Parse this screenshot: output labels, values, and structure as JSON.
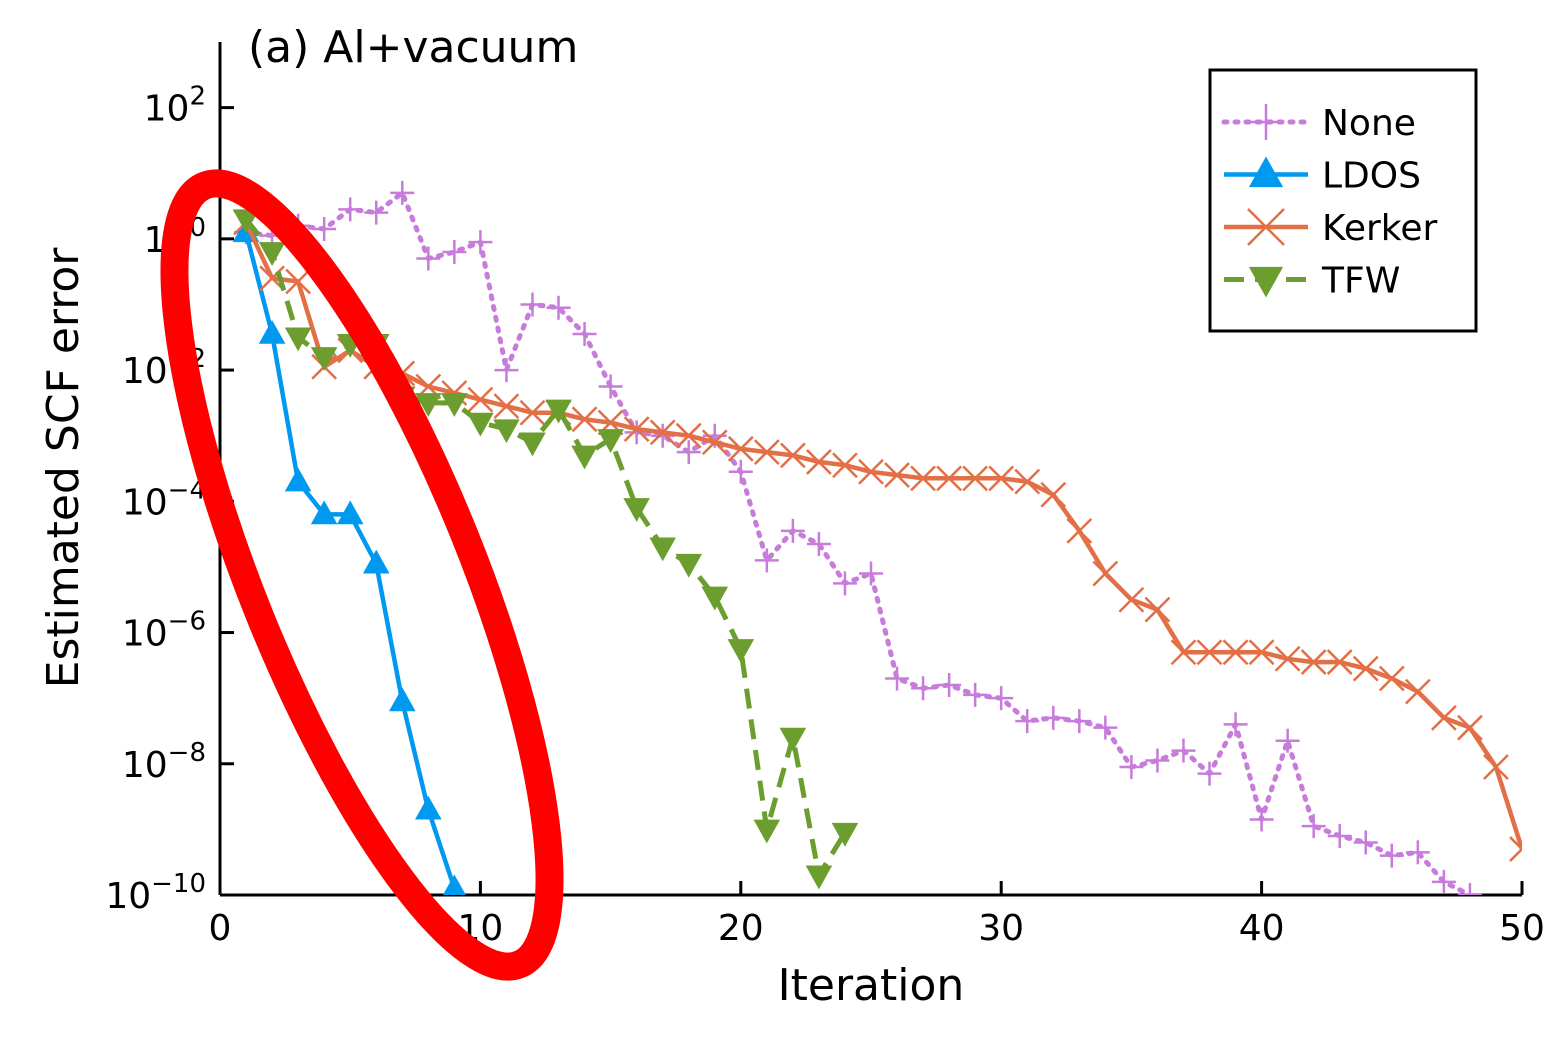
{
  "chart_data": {
    "type": "line",
    "title": "(a) Al+vacuum",
    "xlabel": "Iteration",
    "ylabel": "Estimated SCF error",
    "xlim": [
      0,
      50
    ],
    "ylim_log10": [
      -10,
      3
    ],
    "yscale": "log",
    "xticks": [
      0,
      10,
      20,
      30,
      40,
      50
    ],
    "yticks_exp": [
      2,
      0,
      -2,
      -4,
      -6,
      -8,
      -10
    ],
    "ytick_base": "10",
    "grid": false,
    "legend": "top-right",
    "annotation": "red ellipse highlighting early iterations",
    "series": [
      {
        "name": "None",
        "color": "#c77cdb",
        "marker": "plus",
        "dash": "dot",
        "x": [
          1,
          2,
          3,
          4,
          5,
          6,
          7,
          8,
          9,
          10,
          11,
          12,
          13,
          14,
          15,
          16,
          17,
          18,
          19,
          20,
          21,
          22,
          23,
          24,
          25,
          26,
          27,
          28,
          29,
          30,
          31,
          32,
          33,
          34,
          35,
          36,
          37,
          38,
          39,
          40,
          41,
          42,
          43,
          44,
          45,
          46,
          47,
          48
        ],
        "log10y": [
          0.1,
          0.05,
          0.2,
          0.15,
          0.45,
          0.4,
          0.7,
          -0.3,
          -0.2,
          -0.05,
          -2.0,
          -1.0,
          -1.05,
          -1.45,
          -2.25,
          -2.95,
          -3.0,
          -3.25,
          -3.0,
          -3.55,
          -4.9,
          -4.45,
          -4.65,
          -5.25,
          -5.1,
          -6.7,
          -6.85,
          -6.8,
          -6.95,
          -7.0,
          -7.35,
          -7.3,
          -7.35,
          -7.45,
          -8.05,
          -7.95,
          -7.8,
          -8.15,
          -7.4,
          -8.85,
          -7.65,
          -8.95,
          -9.1,
          -9.2,
          -9.4,
          -9.35,
          -9.8,
          -10.0
        ]
      },
      {
        "name": "LDOS",
        "color": "#0099f0",
        "marker": "triangle-up",
        "dash": "solid",
        "x": [
          1,
          2,
          3,
          4,
          5,
          6,
          7,
          8,
          9
        ],
        "log10y": [
          0.1,
          -1.45,
          -3.7,
          -4.2,
          -4.2,
          -4.95,
          -7.05,
          -8.7,
          -9.9
        ]
      },
      {
        "name": "Kerker",
        "color": "#e26f46",
        "marker": "x",
        "dash": "solid",
        "x": [
          1,
          2,
          3,
          4,
          5,
          6,
          7,
          8,
          9,
          10,
          11,
          12,
          13,
          14,
          15,
          16,
          17,
          18,
          19,
          20,
          21,
          22,
          23,
          24,
          25,
          26,
          27,
          28,
          29,
          30,
          31,
          32,
          33,
          34,
          35,
          36,
          37,
          38,
          39,
          40,
          41,
          42,
          43,
          44,
          45,
          46,
          47,
          48,
          49,
          50
        ],
        "log10y": [
          0.25,
          -0.6,
          -0.65,
          -1.95,
          -1.7,
          -1.95,
          -2.05,
          -2.25,
          -2.35,
          -2.45,
          -2.55,
          -2.65,
          -2.65,
          -2.75,
          -2.8,
          -2.9,
          -2.95,
          -3.0,
          -3.1,
          -3.2,
          -3.25,
          -3.3,
          -3.4,
          -3.45,
          -3.55,
          -3.6,
          -3.65,
          -3.65,
          -3.65,
          -3.65,
          -3.7,
          -3.9,
          -4.45,
          -5.1,
          -5.5,
          -5.65,
          -6.3,
          -6.3,
          -6.3,
          -6.3,
          -6.4,
          -6.45,
          -6.45,
          -6.55,
          -6.7,
          -6.9,
          -7.3,
          -7.45,
          -8.05,
          -9.3
        ]
      },
      {
        "name": "TFW",
        "color": "#6b9e2f",
        "marker": "triangle-down",
        "dash": "dash",
        "x": [
          1,
          2,
          3,
          4,
          5,
          6,
          7,
          8,
          9,
          10,
          11,
          12,
          13,
          14,
          15,
          16,
          17,
          18,
          19,
          20,
          21,
          22,
          23,
          24
        ],
        "log10y": [
          0.3,
          -0.2,
          -1.5,
          -1.8,
          -1.6,
          -1.6,
          -2.4,
          -2.5,
          -2.5,
          -2.8,
          -2.9,
          -3.1,
          -2.6,
          -3.3,
          -3.05,
          -4.1,
          -4.7,
          -4.95,
          -5.45,
          -6.25,
          -9.0,
          -7.6,
          -9.7,
          -9.05
        ]
      }
    ]
  }
}
